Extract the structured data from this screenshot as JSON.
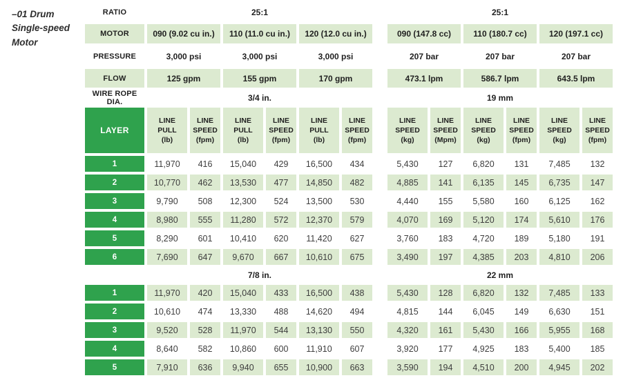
{
  "title": {
    "lines": [
      "–01 Drum",
      "Single-speed",
      "Motor"
    ]
  },
  "colors": {
    "dark_green": "#2fa24d",
    "light_green": "#dcead0",
    "header_text": "#1f1f1f",
    "data_text": "#3d3d3d"
  },
  "table": {
    "spec_rows": [
      {
        "label": "RATIO",
        "bg": "plain",
        "cells": [
          {
            "text": "25:1",
            "span": 6
          },
          {
            "text": "25:1",
            "span": 6
          }
        ]
      },
      {
        "label": "MOTOR",
        "bg": "green",
        "cells": [
          {
            "text": "090 (9.02 cu in.)",
            "span": 2
          },
          {
            "text": "110 (11.0 cu in.)",
            "span": 2
          },
          {
            "text": "120 (12.0 cu in.)",
            "span": 2
          },
          {
            "text": "090 (147.8 cc)",
            "span": 2
          },
          {
            "text": "110 (180.7 cc)",
            "span": 2
          },
          {
            "text": "120 (197.1 cc)",
            "span": 2
          }
        ]
      },
      {
        "label": "PRESSURE",
        "bg": "plain",
        "cells": [
          {
            "text": "3,000 psi",
            "span": 2
          },
          {
            "text": "3,000 psi",
            "span": 2
          },
          {
            "text": "3,000 psi",
            "span": 2
          },
          {
            "text": "207 bar",
            "span": 2
          },
          {
            "text": "207 bar",
            "span": 2
          },
          {
            "text": "207 bar",
            "span": 2
          }
        ]
      },
      {
        "label": "FLOW",
        "bg": "green",
        "cells": [
          {
            "text": "125 gpm",
            "span": 2
          },
          {
            "text": "155 gpm",
            "span": 2
          },
          {
            "text": "170 gpm",
            "span": 2
          },
          {
            "text": "473.1 lpm",
            "span": 2
          },
          {
            "text": "586.7 lpm",
            "span": 2
          },
          {
            "text": "643.5 lpm",
            "span": 2
          }
        ]
      },
      {
        "label": "WIRE ROPE DIA.",
        "bg": "plain",
        "cells": [
          {
            "text": "3/4 in.",
            "span": 6
          },
          {
            "text": "19 mm",
            "span": 6
          }
        ]
      }
    ],
    "layer_header": "LAYER",
    "column_headers": [
      [
        "LINE",
        "PULL",
        "(lb)"
      ],
      [
        "LINE",
        "SPEED",
        "(fpm)"
      ],
      [
        "LINE",
        "PULL",
        "(lb)"
      ],
      [
        "LINE",
        "SPEED",
        "(fpm)"
      ],
      [
        "LINE",
        "PULL",
        "(lb)"
      ],
      [
        "LINE",
        "SPEED",
        "(fpm)"
      ],
      [
        "LINE",
        "SPEED",
        "(kg)"
      ],
      [
        "LINE",
        "SPEED",
        "(Mpm)"
      ],
      [
        "LINE",
        "SPEED",
        "(kg)"
      ],
      [
        "LINE",
        "SPEED",
        "(fpm)"
      ],
      [
        "LINE",
        "SPEED",
        "(kg)"
      ],
      [
        "LINE",
        "SPEED",
        "(fpm)"
      ]
    ],
    "sections": [
      {
        "subheader": null,
        "rows": [
          {
            "layer": "1",
            "values": [
              "11,970",
              "416",
              "15,040",
              "429",
              "16,500",
              "434",
              "5,430",
              "127",
              "6,820",
              "131",
              "7,485",
              "132"
            ]
          },
          {
            "layer": "2",
            "values": [
              "10,770",
              "462",
              "13,530",
              "477",
              "14,850",
              "482",
              "4,885",
              "141",
              "6,135",
              "145",
              "6,735",
              "147"
            ]
          },
          {
            "layer": "3",
            "values": [
              "9,790",
              "508",
              "12,300",
              "524",
              "13,500",
              "530",
              "4,440",
              "155",
              "5,580",
              "160",
              "6,125",
              "162"
            ]
          },
          {
            "layer": "4",
            "values": [
              "8,980",
              "555",
              "11,280",
              "572",
              "12,370",
              "579",
              "4,070",
              "169",
              "5,120",
              "174",
              "5,610",
              "176"
            ]
          },
          {
            "layer": "5",
            "values": [
              "8,290",
              "601",
              "10,410",
              "620",
              "11,420",
              "627",
              "3,760",
              "183",
              "4,720",
              "189",
              "5,180",
              "191"
            ]
          },
          {
            "layer": "6",
            "values": [
              "7,690",
              "647",
              "9,670",
              "667",
              "10,610",
              "675",
              "3,490",
              "197",
              "4,385",
              "203",
              "4,810",
              "206"
            ]
          }
        ]
      },
      {
        "subheader": {
          "imperial": "7/8 in.",
          "metric": "22 mm"
        },
        "rows": [
          {
            "layer": "1",
            "values": [
              "11,970",
              "420",
              "15,040",
              "433",
              "16,500",
              "438",
              "5,430",
              "128",
              "6,820",
              "132",
              "7,485",
              "133"
            ]
          },
          {
            "layer": "2",
            "values": [
              "10,610",
              "474",
              "13,330",
              "488",
              "14,620",
              "494",
              "4,815",
              "144",
              "6,045",
              "149",
              "6,630",
              "151"
            ]
          },
          {
            "layer": "3",
            "values": [
              "9,520",
              "528",
              "11,970",
              "544",
              "13,130",
              "550",
              "4,320",
              "161",
              "5,430",
              "166",
              "5,955",
              "168"
            ]
          },
          {
            "layer": "4",
            "values": [
              "8,640",
              "582",
              "10,860",
              "600",
              "11,910",
              "607",
              "3,920",
              "177",
              "4,925",
              "183",
              "5,400",
              "185"
            ]
          },
          {
            "layer": "5",
            "values": [
              "7,910",
              "636",
              "9,940",
              "655",
              "10,900",
              "663",
              "3,590",
              "194",
              "4,510",
              "200",
              "4,945",
              "202"
            ]
          }
        ]
      }
    ]
  }
}
